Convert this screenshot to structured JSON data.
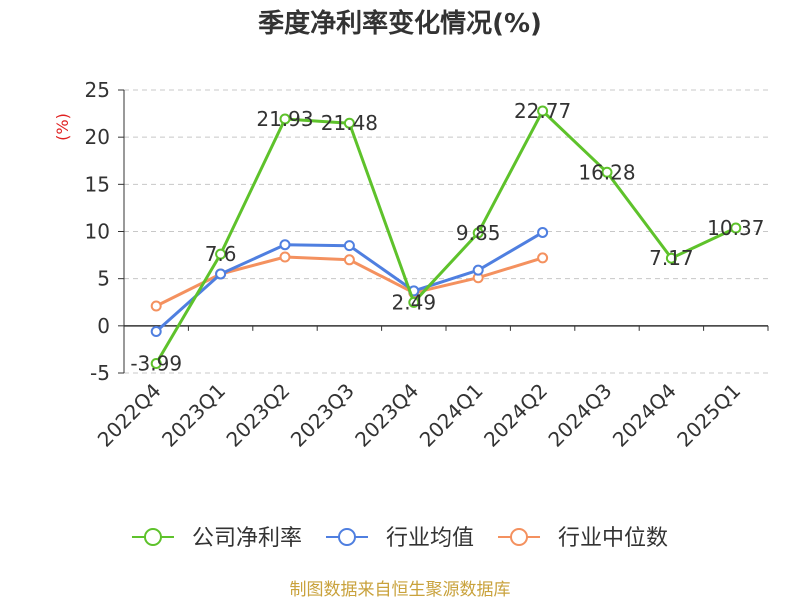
{
  "footer": "制图数据来自恒生聚源数据库",
  "footer_color": "#c9a23c",
  "chart_data": {
    "type": "line",
    "title": "季度净利率变化情况(%)",
    "ylabel": "(%)",
    "ylabel_color": "#e02020",
    "categories": [
      "2022Q4",
      "2023Q1",
      "2023Q2",
      "2023Q3",
      "2023Q4",
      "2024Q1",
      "2024Q2",
      "2024Q3",
      "2024Q4",
      "2025Q1"
    ],
    "ylim": [
      -5,
      25
    ],
    "yticks": [
      -5,
      0,
      5,
      10,
      15,
      20,
      25
    ],
    "grid": true,
    "legend_position": "bottom",
    "series": [
      {
        "name": "公司净利率",
        "color": "#5ec22b",
        "show_labels": true,
        "values": [
          -3.99,
          7.6,
          21.93,
          21.48,
          2.49,
          9.85,
          22.77,
          16.28,
          7.17,
          10.37
        ]
      },
      {
        "name": "行业均值",
        "color": "#4f7fe0",
        "show_labels": false,
        "values": [
          -0.6,
          5.5,
          8.6,
          8.5,
          3.7,
          5.9,
          9.9,
          null,
          null,
          null
        ]
      },
      {
        "name": "行业中位数",
        "color": "#f4915f",
        "show_labels": false,
        "values": [
          2.1,
          5.5,
          7.3,
          7.0,
          3.5,
          5.1,
          7.2,
          null,
          null,
          null
        ]
      }
    ]
  }
}
